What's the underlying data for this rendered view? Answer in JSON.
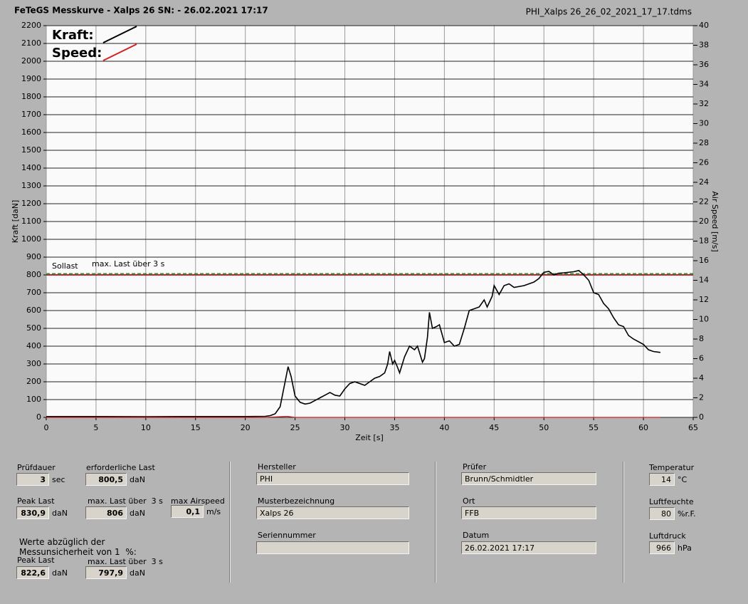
{
  "chart_data": {
    "type": "line",
    "title": "FeTeGS Messkurve - Xalps 26  SN:  - 26.02.2021 17:17",
    "filename": "PHI_Xalps 26_26_02_2021_17_17.tdms",
    "x_label": "Zeit [s]",
    "y_label": "Kraft [daN]",
    "y2_label": "Air Speed [m/s]",
    "xlim": [
      0,
      65
    ],
    "xticks": [
      0,
      5,
      10,
      15,
      20,
      25,
      30,
      35,
      40,
      45,
      50,
      55,
      60,
      65
    ],
    "ylim": [
      0,
      2200
    ],
    "yticks": [
      0,
      100,
      200,
      300,
      400,
      500,
      600,
      700,
      800,
      900,
      1000,
      1100,
      1200,
      1300,
      1400,
      1500,
      1600,
      1700,
      1800,
      1900,
      2000,
      2100,
      2200
    ],
    "y2lim": [
      0,
      40
    ],
    "y2ticks": [
      0,
      2,
      4,
      6,
      8,
      10,
      12,
      14,
      16,
      18,
      20,
      22,
      24,
      26,
      28,
      30,
      32,
      34,
      36,
      38,
      40
    ],
    "grid": true,
    "series": [
      {
        "name": "Kraft:",
        "color": "#000000",
        "x": [
          0,
          5,
          10,
          15,
          20,
          22,
          22.5,
          23,
          23.5,
          24,
          24.3,
          24.6,
          25,
          25.5,
          26,
          26.5,
          27,
          27.5,
          28,
          28.5,
          29,
          29.5,
          30,
          30.5,
          31,
          31.5,
          32,
          32.5,
          33,
          33.5,
          34,
          34.3,
          34.5,
          34.8,
          35,
          35.3,
          35.5,
          36,
          36.5,
          37,
          37.3,
          37.8,
          38,
          38.3,
          38.5,
          38.8,
          39.2,
          39.5,
          40,
          40.5,
          41,
          41.5,
          42,
          42.5,
          43,
          43.5,
          44,
          44.3,
          44.8,
          45,
          45.5,
          46,
          46.5,
          47,
          48,
          49,
          49.5,
          50,
          50.5,
          51,
          51.5,
          52,
          53,
          53.5,
          54,
          54.5,
          55,
          55.5,
          56,
          56.5,
          57,
          57.5,
          58,
          58.5,
          59,
          60,
          60.5,
          61,
          61.7
        ],
        "values": [
          5,
          5,
          4,
          5,
          5,
          6,
          10,
          20,
          60,
          200,
          285,
          230,
          120,
          85,
          75,
          80,
          95,
          110,
          125,
          140,
          125,
          120,
          160,
          190,
          200,
          190,
          180,
          200,
          220,
          230,
          250,
          300,
          370,
          300,
          320,
          280,
          250,
          340,
          400,
          380,
          400,
          310,
          330,
          450,
          590,
          500,
          510,
          520,
          420,
          430,
          400,
          410,
          500,
          600,
          610,
          620,
          660,
          620,
          680,
          740,
          690,
          740,
          750,
          730,
          740,
          760,
          780,
          815,
          820,
          800,
          810,
          812,
          818,
          825,
          800,
          770,
          700,
          690,
          640,
          610,
          560,
          520,
          510,
          460,
          440,
          410,
          380,
          370,
          365
        ]
      },
      {
        "name": "Speed:",
        "color": "#d42020",
        "axis": "y2",
        "x": [
          0,
          22,
          24,
          24.3,
          25,
          61.7
        ],
        "values": [
          0,
          0,
          0.1,
          0.1,
          0,
          0
        ]
      }
    ],
    "reference_lines": [
      {
        "name": "Sollast",
        "value": 800.5,
        "color": "#c8102e"
      },
      {
        "name": "max. Last über  3 s",
        "value": 806,
        "color": "#2e8b2e"
      }
    ]
  },
  "panel": {
    "pruefdauer": {
      "label": "Prüfdauer",
      "value": "3",
      "unit": "sec"
    },
    "erforderliche_last": {
      "label": "erforderliche Last",
      "value": "800,5",
      "unit": "daN"
    },
    "peak_last": {
      "label": "Peak Last",
      "value": "830,9",
      "unit": "daN"
    },
    "max_last": {
      "label": "max. Last über  3 s",
      "value": "806",
      "unit": "daN"
    },
    "max_airspeed": {
      "label": "max Airspeed",
      "value": "0,1",
      "unit": "m/s"
    },
    "note_1": "Werte abzüglich der",
    "note_2": "Messunsicherheit von 1  %:",
    "peak_last_corr": {
      "label": "Peak Last",
      "value": "822,6",
      "unit": "daN"
    },
    "max_last_corr": {
      "label": "max. Last über  3 s",
      "value": "797,9",
      "unit": "daN"
    },
    "hersteller": {
      "label": "Hersteller",
      "value": "PHI"
    },
    "musterbezeichnung": {
      "label": "Musterbezeichnung",
      "value": "Xalps 26"
    },
    "seriennummer": {
      "label": "Seriennummer"
    },
    "pruefer": {
      "label": "Prüfer",
      "value": "Brunn/Schmidtler"
    },
    "ort": {
      "label": "Ort",
      "value": "FFB"
    },
    "datum": {
      "label": "Datum",
      "value": "26.02.2021 17:17"
    },
    "temperatur": {
      "label": "Temperatur",
      "value": "14",
      "unit": "°C"
    },
    "luftfeuchte": {
      "label": "Luftfeuchte",
      "value": "80",
      "unit": "%r.F."
    },
    "luftdruck": {
      "label": "Luftdruck",
      "value": "966",
      "unit": "hPa"
    }
  }
}
